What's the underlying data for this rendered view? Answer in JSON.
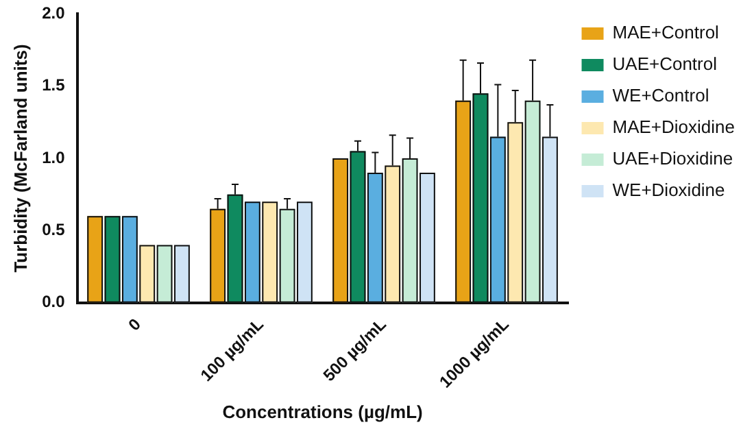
{
  "chart_data": {
    "type": "bar",
    "xlabel": "Concentrations (µg/mL)",
    "ylabel": "Turbidity (McFarland units)",
    "categories": [
      "0",
      "100 µg/mL",
      "500 µg/mL",
      "1000 µg/mL"
    ],
    "series": [
      {
        "name": "MAE+Control",
        "color": "#e8a317",
        "values": [
          0.6,
          0.65,
          1.0,
          1.4
        ],
        "errors": [
          null,
          [
            0.65,
            0.72
          ],
          null,
          [
            1.4,
            1.68
          ]
        ]
      },
      {
        "name": "UAE+Control",
        "color": "#0f8a5f",
        "values": [
          0.6,
          0.75,
          1.05,
          1.45
        ],
        "errors": [
          null,
          [
            0.75,
            0.82
          ],
          [
            1.05,
            1.12
          ],
          [
            1.45,
            1.66
          ]
        ]
      },
      {
        "name": "WE+Control",
        "color": "#5aaee0",
        "values": [
          0.6,
          0.7,
          0.9,
          1.15
        ],
        "errors": [
          null,
          null,
          [
            0.9,
            1.04
          ],
          [
            1.15,
            1.51
          ]
        ]
      },
      {
        "name": "MAE+Dioxidine",
        "color": "#fde8b0",
        "values": [
          0.4,
          0.7,
          0.95,
          1.25
        ],
        "errors": [
          null,
          null,
          [
            0.95,
            1.16
          ],
          [
            1.25,
            1.47
          ]
        ]
      },
      {
        "name": "UAE+Dioxidine",
        "color": "#c5ecd6",
        "values": [
          0.4,
          0.65,
          1.0,
          1.4
        ],
        "errors": [
          null,
          [
            0.65,
            0.72
          ],
          [
            1.0,
            1.14
          ],
          [
            1.4,
            1.68
          ]
        ]
      },
      {
        "name": "WE+Dioxidine",
        "color": "#cfe3f5",
        "values": [
          0.4,
          0.7,
          0.9,
          1.15
        ],
        "errors": [
          null,
          null,
          null,
          [
            1.15,
            1.37
          ]
        ]
      }
    ],
    "ylim": [
      0,
      2.0
    ],
    "yticks": [
      {
        "value": 0,
        "label": "0.0"
      },
      {
        "value": 0.5,
        "label": "0.5"
      },
      {
        "value": 1,
        "label": "1.0"
      },
      {
        "value": 1.5,
        "label": "1.5"
      },
      {
        "value": 2,
        "label": "2.0"
      }
    ],
    "grid": false,
    "legend": "right"
  }
}
